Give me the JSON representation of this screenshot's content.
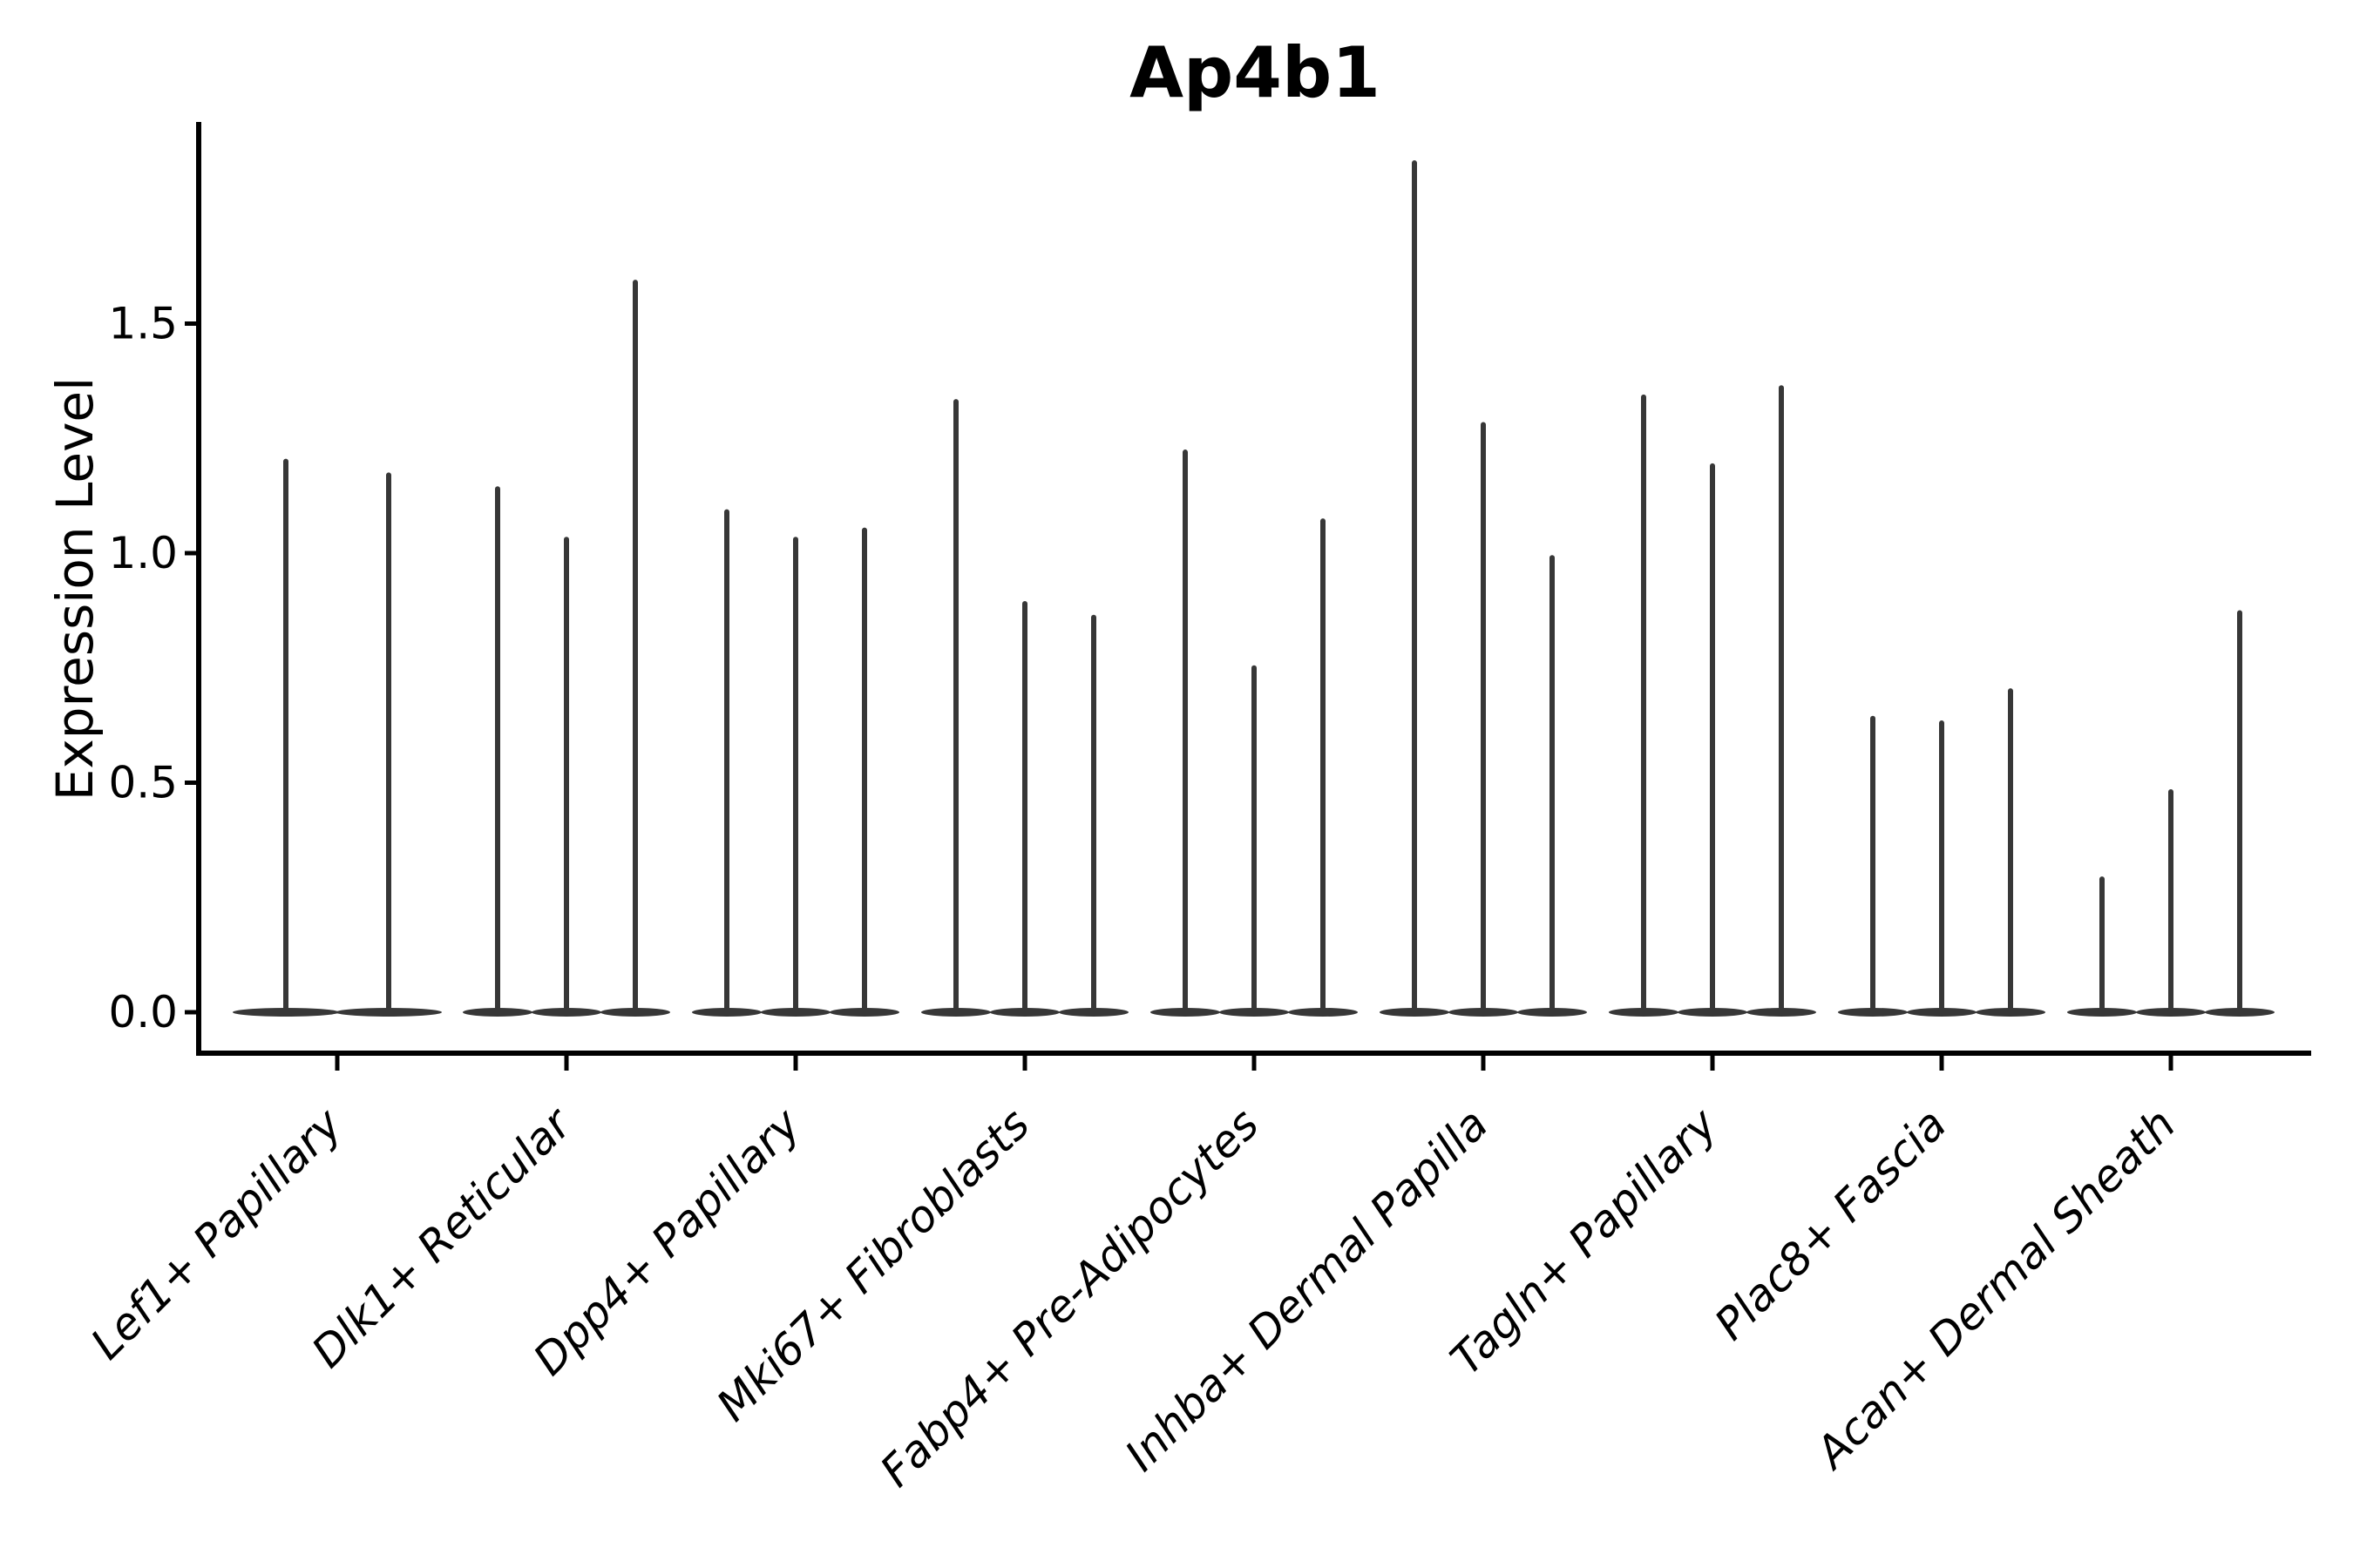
{
  "chart_data": {
    "type": "violin",
    "title": "Ap4b1",
    "ylabel": "Expression Level",
    "xlabel": "",
    "grid": false,
    "legend": "none",
    "categories": [
      "Lef1+ Papillary",
      "Dlk1+ Reticular",
      "Dpp4+ Papillary",
      "Mki67+ Fibroblasts",
      "Fabp4+ Pre-Adipocytes",
      "Inhba+ Dermal Papilla",
      "Tagln+ Papillary",
      "Plac8+ Fascia",
      "Acan+ Dermal Sheath"
    ],
    "violins": [
      {
        "category": "Lef1+ Papillary",
        "baseline": 0.0,
        "maxima": [
          1.2,
          1.17
        ]
      },
      {
        "category": "Dlk1+ Reticular",
        "baseline": 0.0,
        "maxima": [
          1.14,
          1.03,
          1.59
        ]
      },
      {
        "category": "Dpp4+ Papillary",
        "baseline": 0.0,
        "maxima": [
          1.09,
          1.03,
          1.05
        ]
      },
      {
        "category": "Mki67+ Fibroblasts",
        "baseline": 0.0,
        "maxima": [
          1.33,
          0.89,
          0.86
        ]
      },
      {
        "category": "Fabp4+ Pre-Adipocytes",
        "baseline": 0.0,
        "maxima": [
          1.22,
          0.75,
          1.07
        ]
      },
      {
        "category": "Inhba+ Dermal Papilla",
        "baseline": 0.0,
        "maxima": [
          1.85,
          1.28,
          0.99
        ]
      },
      {
        "category": "Tagln+ Papillary",
        "baseline": 0.0,
        "maxima": [
          1.34,
          1.19,
          1.36
        ]
      },
      {
        "category": "Plac8+ Fascia",
        "baseline": 0.0,
        "maxima": [
          0.64,
          0.63,
          0.7
        ]
      },
      {
        "category": "Acan+ Dermal Sheath",
        "baseline": 0.0,
        "maxima": [
          0.29,
          0.48,
          0.87
        ]
      }
    ],
    "yticks": [
      0.0,
      0.5,
      1.0,
      1.5
    ],
    "ytick_labels": [
      "0.0",
      "0.5",
      "1.0",
      "1.5"
    ],
    "ylim": [
      -0.09,
      1.94
    ],
    "colors": {
      "violin": "#373737",
      "axis": "#000000",
      "text": "#000000",
      "background": "#ffffff"
    }
  }
}
